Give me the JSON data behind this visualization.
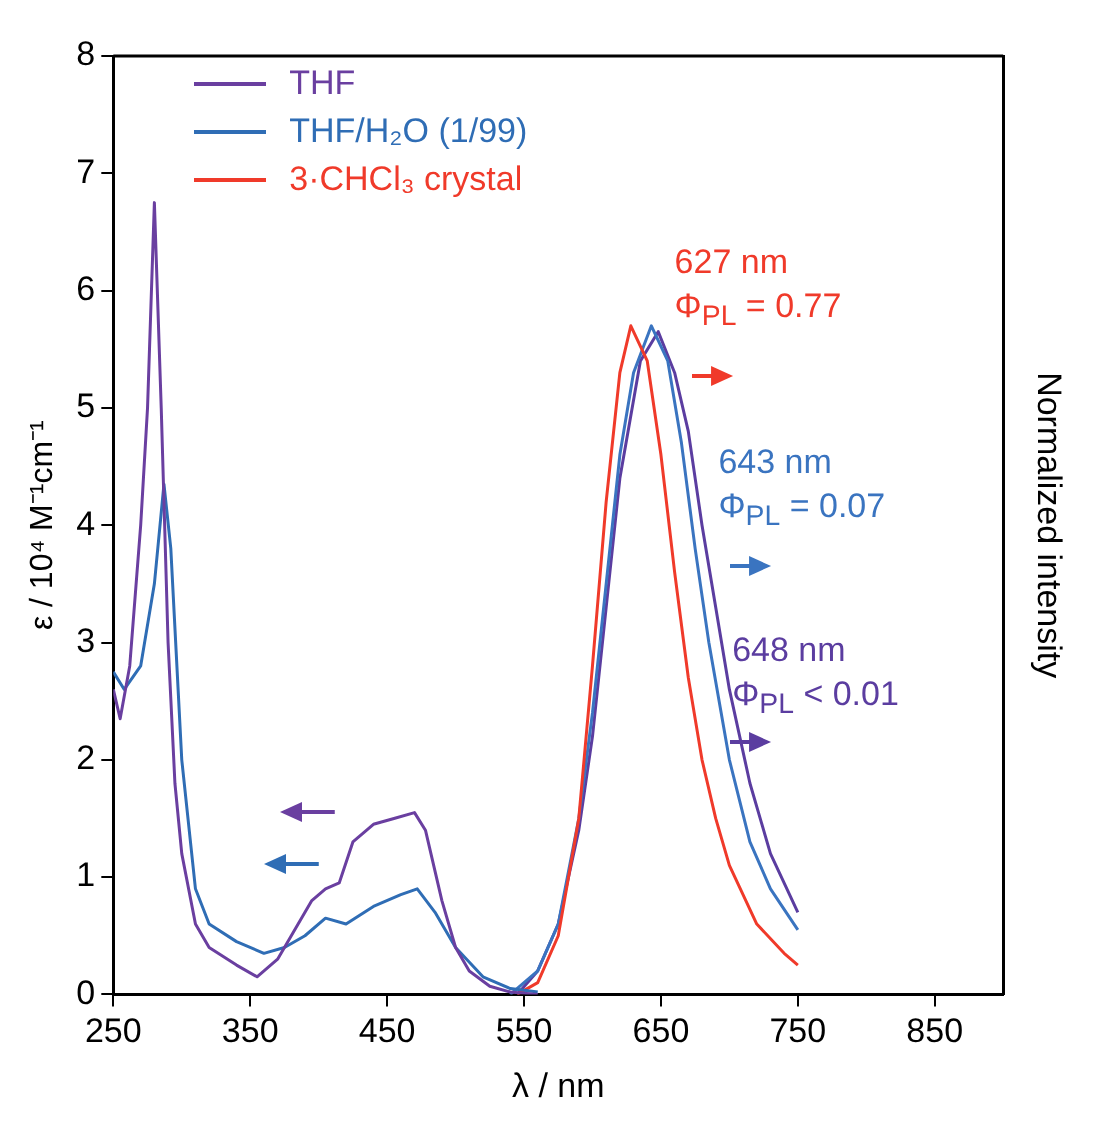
{
  "chart_data": {
    "type": "line",
    "xlabel": "λ / nm",
    "ylabel": "ε / 10⁴ M⁻¹cm⁻¹",
    "y2label": "Normalized intensity",
    "xlim": [
      250,
      900
    ],
    "xticks": [
      250,
      350,
      450,
      550,
      650,
      750,
      850
    ],
    "ylim": [
      0,
      8
    ],
    "yticks": [
      0,
      1,
      2,
      3,
      4,
      5,
      6,
      7,
      8
    ],
    "grid": false,
    "legend": "top left",
    "marker": "none",
    "line_style": "solid",
    "series": [
      {
        "name": "THF",
        "color": "#6a3fa0",
        "x": [
          250,
          255,
          262,
          270,
          275,
          280,
          285,
          290,
          295,
          300,
          310,
          320,
          340,
          355,
          370,
          380,
          395,
          405,
          415,
          425,
          440,
          455,
          470,
          478,
          490,
          500,
          510,
          525,
          540,
          560
        ],
        "values": [
          2.6,
          2.35,
          2.8,
          4.0,
          5.0,
          6.75,
          5.0,
          3.0,
          1.8,
          1.2,
          0.6,
          0.4,
          0.25,
          0.15,
          0.3,
          0.5,
          0.8,
          0.9,
          0.95,
          1.3,
          1.45,
          1.5,
          1.55,
          1.4,
          0.8,
          0.4,
          0.2,
          0.07,
          0.02,
          0
        ]
      },
      {
        "name": "THF/H₂O (1/99)",
        "color": "#2f6db5",
        "x": [
          250,
          258,
          270,
          280,
          287,
          292,
          300,
          310,
          320,
          340,
          360,
          375,
          390,
          405,
          420,
          440,
          460,
          472,
          485,
          500,
          520,
          540,
          560
        ],
        "values": [
          2.75,
          2.6,
          2.8,
          3.5,
          4.35,
          3.8,
          2.0,
          0.9,
          0.6,
          0.45,
          0.35,
          0.4,
          0.5,
          0.65,
          0.6,
          0.75,
          0.85,
          0.9,
          0.7,
          0.4,
          0.15,
          0.05,
          0.02
        ]
      },
      {
        "name": "3·CHCl₃ crystal",
        "color": "#f03a2a",
        "x": [
          545,
          560,
          575,
          590,
          600,
          610,
          620,
          628,
          640,
          650,
          660,
          670,
          680,
          690,
          700,
          720,
          740,
          750
        ],
        "values": [
          0,
          0.1,
          0.5,
          1.5,
          2.8,
          4.2,
          5.3,
          5.7,
          5.4,
          4.6,
          3.6,
          2.7,
          2.0,
          1.5,
          1.1,
          0.6,
          0.35,
          0.25
        ]
      },
      {
        "color": "#3a74c0",
        "x": [
          540,
          560,
          575,
          590,
          600,
          610,
          620,
          630,
          643,
          655,
          665,
          675,
          685,
          700,
          715,
          730,
          750
        ],
        "values": [
          0,
          0.2,
          0.6,
          1.5,
          2.4,
          3.5,
          4.6,
          5.3,
          5.7,
          5.4,
          4.7,
          3.8,
          3.0,
          2.0,
          1.3,
          0.9,
          0.55
        ]
      },
      {
        "color": "#5b3da0",
        "x": [
          545,
          560,
          575,
          590,
          600,
          610,
          620,
          635,
          648,
          660,
          670,
          680,
          690,
          700,
          715,
          730,
          750
        ],
        "values": [
          0,
          0.2,
          0.6,
          1.4,
          2.2,
          3.3,
          4.4,
          5.4,
          5.65,
          5.3,
          4.8,
          4.0,
          3.3,
          2.6,
          1.8,
          1.2,
          0.7
        ]
      }
    ],
    "annotations": [
      "627 nm\nΦ$_{PL}$ = 0.77",
      "643 nm\nΦ$_{PL}$ = 0.07",
      "648 nm\nΦ$_{PL}$ < 0.01"
    ]
  }
}
